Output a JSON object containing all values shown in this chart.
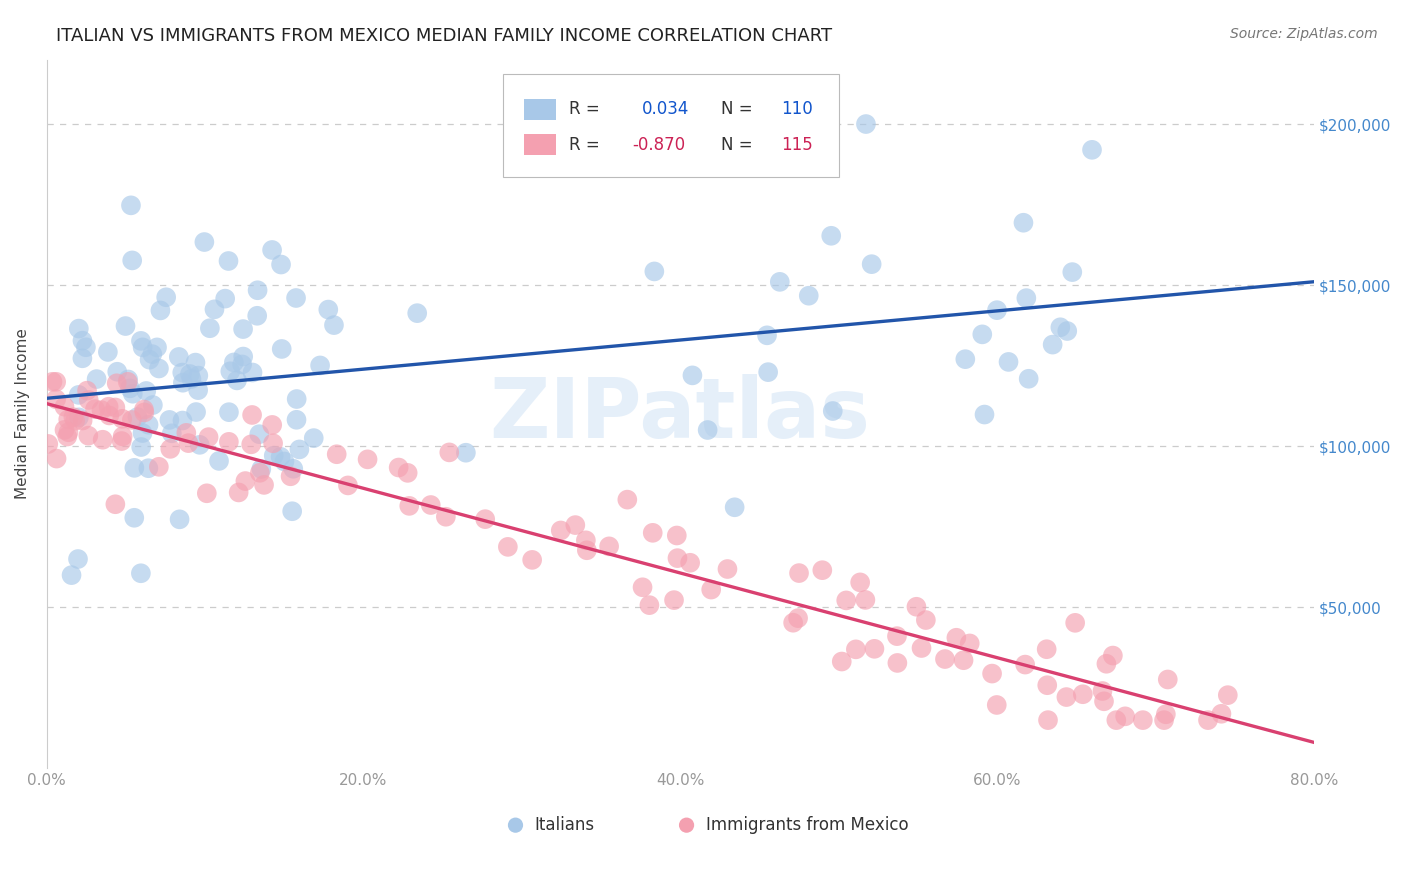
{
  "title": "ITALIAN VS IMMIGRANTS FROM MEXICO MEDIAN FAMILY INCOME CORRELATION CHART",
  "source": "Source: ZipAtlas.com",
  "xlabel_ticks": [
    "0.0%",
    "20.0%",
    "40.0%",
    "60.0%",
    "80.0%"
  ],
  "xlabel_tick_vals": [
    0.0,
    0.2,
    0.4,
    0.6,
    0.8
  ],
  "ylabel": "Median Family Income",
  "ytick_labels": [
    "$50,000",
    "$100,000",
    "$150,000",
    "$200,000"
  ],
  "ytick_vals": [
    50000,
    100000,
    150000,
    200000
  ],
  "legend_bottom_1": "Italians",
  "legend_bottom_2": "Immigrants from Mexico",
  "watermark": "ZIPatlas",
  "blue_color": "#a8c8e8",
  "pink_color": "#f4a0b0",
  "blue_line_color": "#2255aa",
  "pink_line_color": "#d94070",
  "title_color": "#222222",
  "source_color": "#777777",
  "axis_color": "#999999",
  "grid_color": "#cccccc",
  "background_color": "#ffffff",
  "ytick_color": "#4488cc",
  "xlim": [
    0.0,
    0.8
  ],
  "ylim": [
    0,
    220000
  ],
  "title_fontsize": 13,
  "axis_label_fontsize": 11,
  "tick_fontsize": 11,
  "source_fontsize": 10,
  "legend_fontsize": 12
}
